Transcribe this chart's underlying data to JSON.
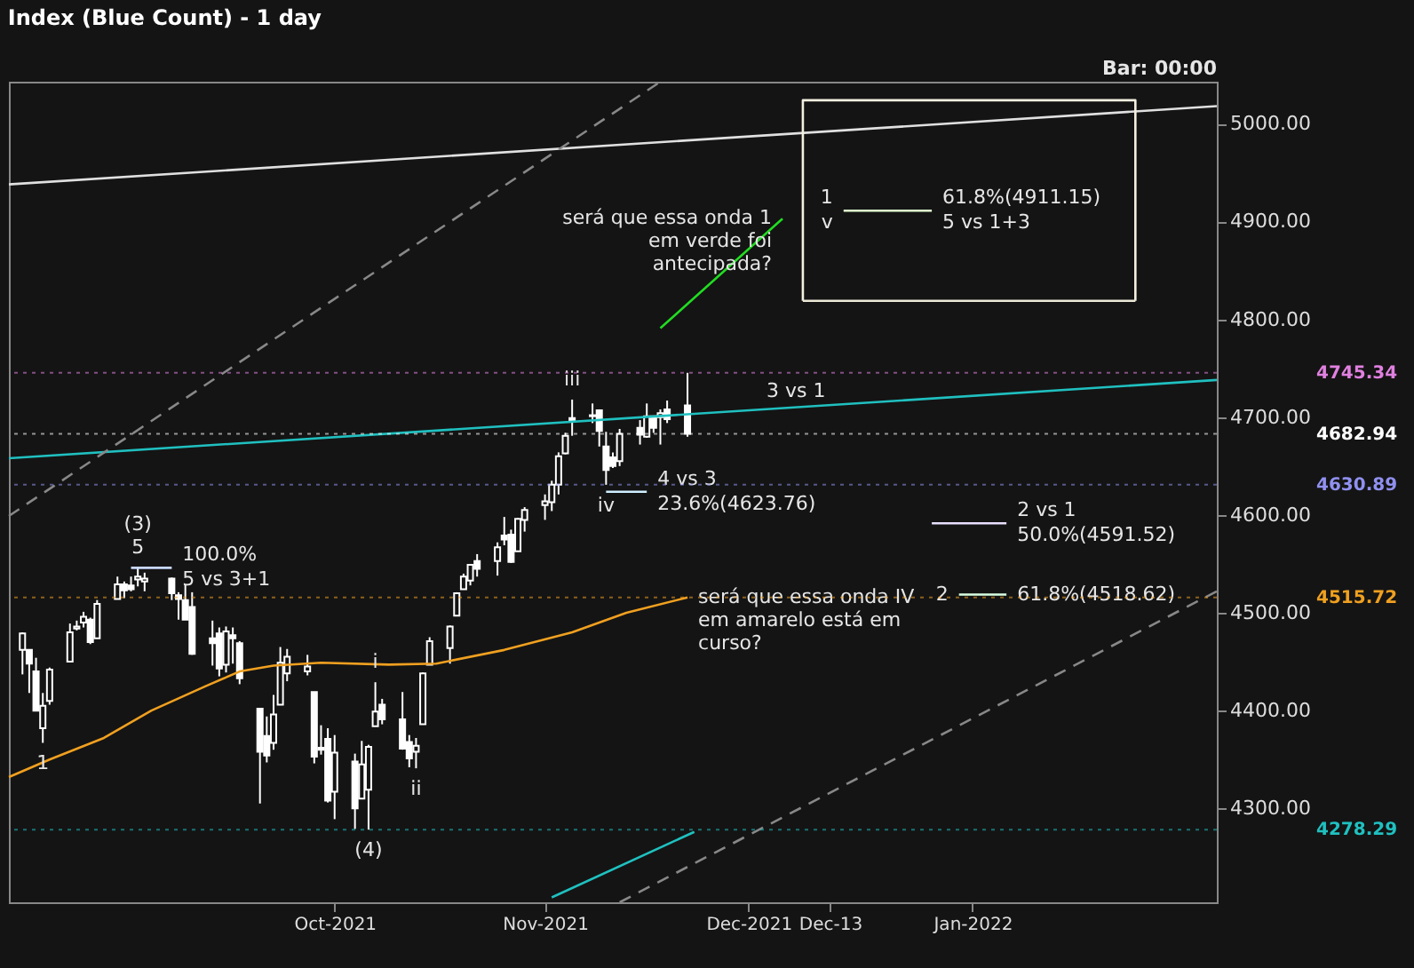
{
  "chart_data": {
    "type": "candlestick",
    "title": "Index (Blue Count) - 1 day",
    "x": [
      "2021-08-16",
      "2021-08-17",
      "2021-08-18",
      "2021-08-19",
      "2021-08-20",
      "2021-08-23",
      "2021-08-24",
      "2021-08-25",
      "2021-08-26",
      "2021-08-27",
      "2021-08-30",
      "2021-08-31",
      "2021-09-01",
      "2021-09-02",
      "2021-09-03",
      "2021-09-07",
      "2021-09-08",
      "2021-09-09",
      "2021-09-10",
      "2021-09-13",
      "2021-09-14",
      "2021-09-15",
      "2021-09-16",
      "2021-09-17",
      "2021-09-20",
      "2021-09-21",
      "2021-09-22",
      "2021-09-23",
      "2021-09-24",
      "2021-09-27",
      "2021-09-28",
      "2021-09-29",
      "2021-09-30",
      "2021-10-01",
      "2021-10-04",
      "2021-10-05",
      "2021-10-06",
      "2021-10-07",
      "2021-10-08",
      "2021-10-11",
      "2021-10-12",
      "2021-10-13",
      "2021-10-14",
      "2021-10-15",
      "2021-10-18",
      "2021-10-19",
      "2021-10-20",
      "2021-10-21",
      "2021-10-22",
      "2021-10-25",
      "2021-10-26",
      "2021-10-27",
      "2021-10-28",
      "2021-10-29",
      "2021-11-01",
      "2021-11-02",
      "2021-11-03",
      "2021-11-04",
      "2021-11-05",
      "2021-11-08",
      "2021-11-09",
      "2021-11-10",
      "2021-11-11",
      "2021-11-12",
      "2021-11-15",
      "2021-11-16",
      "2021-11-17",
      "2021-11-18",
      "2021-11-19",
      "2021-11-22"
    ],
    "ohlc": [
      [
        4462,
        4480,
        4437,
        4479
      ],
      [
        4462,
        4462,
        4418,
        4448
      ],
      [
        4440,
        4454,
        4400,
        4400
      ],
      [
        4382,
        4418,
        4367,
        4405
      ],
      [
        4410,
        4444,
        4406,
        4442
      ],
      [
        4450,
        4489,
        4450,
        4480
      ],
      [
        4484,
        4492,
        4482,
        4486
      ],
      [
        4490,
        4501,
        4485,
        4496
      ],
      [
        4493,
        4495,
        4468,
        4470
      ],
      [
        4474,
        4513,
        4474,
        4509
      ],
      [
        4514,
        4537,
        4514,
        4529
      ],
      [
        4529,
        4532,
        4515,
        4523
      ],
      [
        4528,
        4537,
        4522,
        4524
      ],
      [
        4534,
        4546,
        4527,
        4537
      ],
      [
        4532,
        4541,
        4522,
        4535
      ],
      [
        4535,
        4536,
        4513,
        4520
      ],
      [
        4518,
        4521,
        4493,
        4514
      ],
      [
        4513,
        4529,
        4493,
        4493
      ],
      [
        4506,
        4521,
        4457,
        4458
      ],
      [
        4474,
        4492,
        4446,
        4469
      ],
      [
        4479,
        4485,
        4435,
        4443
      ],
      [
        4447,
        4486,
        4439,
        4481
      ],
      [
        4477,
        4485,
        4448,
        4474
      ],
      [
        4469,
        4471,
        4427,
        4433
      ],
      [
        4402,
        4402,
        4305,
        4358
      ],
      [
        4374,
        4394,
        4347,
        4354
      ],
      [
        4367,
        4416,
        4360,
        4396
      ],
      [
        4406,
        4465,
        4406,
        4449
      ],
      [
        4438,
        4463,
        4430,
        4455
      ],
      [
        4440,
        4457,
        4436,
        4445
      ],
      [
        4419,
        4419,
        4346,
        4353
      ],
      [
        4362,
        4385,
        4355,
        4360
      ],
      [
        4371,
        4382,
        4306,
        4308
      ],
      [
        4317,
        4375,
        4289,
        4357
      ],
      [
        4348,
        4356,
        4279,
        4300
      ],
      [
        4310,
        4369,
        4310,
        4345
      ],
      [
        4319,
        4365,
        4278.29,
        4363
      ],
      [
        4384,
        4429,
        4384,
        4399
      ],
      [
        4406,
        4412,
        4386,
        4391
      ],
      [
        4391,
        4419,
        4360,
        4361
      ],
      [
        4368,
        4375,
        4342,
        4351
      ],
      [
        4358,
        4372,
        4341,
        4364
      ],
      [
        4386,
        4439,
        4386,
        4438
      ],
      [
        4447,
        4475,
        4447,
        4471
      ],
      [
        4464,
        4487,
        4448,
        4486
      ],
      [
        4497,
        4521,
        4497,
        4520
      ],
      [
        4524,
        4540,
        4524,
        4537
      ],
      [
        4533,
        4549,
        4528,
        4549
      ],
      [
        4553,
        4560,
        4537,
        4545
      ],
      [
        4553,
        4572,
        4538,
        4567
      ],
      [
        4579,
        4598,
        4569,
        4575
      ],
      [
        4580,
        4585,
        4551,
        4552
      ],
      [
        4563,
        4597,
        4563,
        4596
      ],
      [
        4595,
        4608,
        4583,
        4605
      ],
      [
        4610,
        4621,
        4595,
        4614
      ],
      [
        4613,
        4635,
        4604,
        4631
      ],
      [
        4631,
        4664,
        4621,
        4660
      ],
      [
        4663,
        4684,
        4662,
        4681
      ],
      [
        4699,
        4718,
        4681,
        4697
      ],
      [
        4701,
        4714,
        4694,
        4702
      ],
      [
        4707,
        4708,
        4670,
        4686
      ],
      [
        4670,
        4685,
        4630.89,
        4646
      ],
      [
        4659,
        4664,
        4648,
        4650
      ],
      [
        4655,
        4688,
        4650,
        4683
      ],
      [
        4689,
        4697,
        4672,
        4682
      ],
      [
        4680,
        4714,
        4679,
        4701
      ],
      [
        4701,
        4701,
        4684,
        4689
      ],
      [
        4700,
        4708,
        4672,
        4704
      ],
      [
        4708,
        4717,
        4694,
        4698
      ],
      [
        4712,
        4745.34,
        4680,
        4682.94
      ]
    ],
    "color": "#ffffff",
    "series": [
      {
        "type": "line",
        "color": "#f0a020",
        "x": [
          "2021-08-14",
          "2021-08-20",
          "2021-08-28",
          "2021-09-04",
          "2021-09-12",
          "2021-09-17",
          "2021-09-22",
          "2021-09-29",
          "2021-10-09",
          "2021-10-16",
          "2021-10-26",
          "2021-11-05",
          "2021-11-13",
          "2021-11-22"
        ],
        "values": [
          4332,
          4350,
          4372,
          4400,
          4425,
          4440,
          4446,
          4449,
          4447,
          4448,
          4462,
          4480,
          4500,
          4515.72
        ]
      },
      {
        "type": "line",
        "color": "#20c0c0",
        "x": [
          "2021-08-14",
          "2022-02-08"
        ],
        "values": [
          4658,
          4738
        ]
      },
      {
        "type": "line",
        "color": "#20c0c0",
        "x": [
          "2021-11-02",
          "2021-11-23"
        ],
        "values": [
          4209,
          4276
        ]
      },
      {
        "type": "line",
        "color": "#e0e0e0",
        "x": [
          "2021-08-14",
          "2022-02-08"
        ],
        "values": [
          4938,
          5018
        ]
      },
      {
        "type": "line",
        "color": "#888888",
        "line_style": "dashed",
        "x": [
          "2021-08-14",
          "2021-11-18"
        ],
        "values": [
          4599,
          5043
        ]
      },
      {
        "type": "line",
        "color": "#888888",
        "line_style": "dashed",
        "x": [
          "2021-11-12",
          "2022-02-08"
        ],
        "values": [
          4204,
          4522
        ]
      },
      {
        "type": "line",
        "color": "#22dd22",
        "x": [
          "2021-12-06",
          "2021-11-18"
        ],
        "values": [
          4903,
          4791
        ]
      },
      {
        "type": "line",
        "color": "#f4f0e0",
        "x": [
          "2021-12-09",
          "2021-12-09",
          "2022-01-27",
          "2022-01-27"
        ],
        "values": [
          4819,
          5024,
          5024,
          4819
        ]
      },
      {
        "type": "line",
        "color": "#ece8d8",
        "x": [
          "2021-12-09",
          "2022-01-27"
        ],
        "values": [
          4819,
          4819
        ]
      },
      {
        "type": "line",
        "color": "#c8d8ff",
        "x": [
          "2021-09-01",
          "2021-09-07"
        ],
        "values": [
          4546,
          4546
        ]
      },
      {
        "type": "line",
        "color": "#d0f0ff",
        "x": [
          "2021-11-10",
          "2021-11-16"
        ],
        "values": [
          4623.76,
          4623.76
        ]
      },
      {
        "type": "line",
        "color": "#e0ffd0",
        "x": [
          "2021-12-15",
          "2021-12-28"
        ],
        "values": [
          4911.15,
          4911.15
        ]
      },
      {
        "type": "line",
        "color": "#e8e0ff",
        "x": [
          "2021-12-28",
          "2022-01-08"
        ],
        "values": [
          4591.52,
          4591.52
        ]
      },
      {
        "type": "line",
        "color": "#d8ffe0",
        "x": [
          "2022-01-01",
          "2022-01-08"
        ],
        "values": [
          4518.62,
          4518.62
        ]
      }
    ],
    "ref_lines": [
      {
        "axis": "y",
        "value": 4745.34,
        "label": "4745.34",
        "color": "#e080e0"
      },
      {
        "axis": "y",
        "value": 4682.94,
        "label": "4682.94",
        "color": "#ffffff"
      },
      {
        "axis": "y",
        "value": 4630.89,
        "label": "4630.89",
        "color": "#9090f0"
      },
      {
        "axis": "y",
        "value": 4515.72,
        "label": "4515.72",
        "color": "#f0a020"
      },
      {
        "axis": "y",
        "value": 4278.29,
        "label": "4278.29",
        "color": "#20c0c0"
      }
    ],
    "annotations": [
      {
        "text": "(3)",
        "x": "2021-09-02",
        "y": 4546
      },
      {
        "text": "5",
        "x": "2021-09-02",
        "y": 4546
      },
      {
        "text": "100.0%",
        "x": "2021-09-07",
        "y": 4546
      },
      {
        "text": "5 vs 3+1",
        "x": "2021-09-07",
        "y": 4546
      },
      {
        "text": "1",
        "x": "2021-08-19",
        "y": 4367
      },
      {
        "text": "(4)",
        "x": "2021-10-06",
        "y": 4278.29
      },
      {
        "text": "i",
        "x": "2021-10-07",
        "y": 4429
      },
      {
        "text": "ii",
        "x": "2021-10-13",
        "y": 4341
      },
      {
        "text": "iii",
        "x": "2021-11-05",
        "y": 4718
      },
      {
        "text": "iv",
        "x": "2021-11-10",
        "y": 4630.89
      },
      {
        "text": "4 vs 3",
        "x": "2021-11-16",
        "y": 4623.76
      },
      {
        "text": "23.6%(4623.76)",
        "x": "2021-11-16",
        "y": 4623.76
      },
      {
        "text": "3 vs 1",
        "x": "2021-12-08",
        "y": 4710
      },
      {
        "text": "será que essa onda 1\nem verde foi\nantecipada?",
        "x": "2021-12-06",
        "y": 4903
      },
      {
        "text": "será que essa onda IV\nem amarelo está em\ncurso?",
        "x": "2021-11-22",
        "y": 4515.72
      },
      {
        "text": "1",
        "x": "2021-12-15",
        "y": 4911.15
      },
      {
        "text": "v",
        "x": "2021-12-15",
        "y": 4911.15
      },
      {
        "text": "61.8%(4911.15)",
        "x": "2021-12-28",
        "y": 4911.15
      },
      {
        "text": "5 vs 1+3",
        "x": "2021-12-28",
        "y": 4911.15
      },
      {
        "text": "2 vs 1",
        "x": "2022-01-08",
        "y": 4591.52
      },
      {
        "text": "50.0%(4591.52)",
        "x": "2022-01-08",
        "y": 4591.52
      },
      {
        "text": "2",
        "x": "2022-01-01",
        "y": 4518.62
      },
      {
        "text": "61.8%(4518.62)",
        "x": "2022-01-08",
        "y": 4518.62
      },
      "Bar: 00:00"
    ],
    "xlim": [
      "2021-08-14",
      "2022-02-08"
    ],
    "xticks": [
      {
        "value": "2021-10-01",
        "label": "Oct-2021"
      },
      {
        "value": "2021-11-01",
        "label": "Nov-2021"
      },
      {
        "value": "2021-12-01",
        "label": "Dec-2021"
      },
      {
        "value": "2021-12-13",
        "label": "Dec-13"
      },
      {
        "value": "2022-01-03",
        "label": "Jan-2022"
      }
    ],
    "ylim": [
      4204,
      5043
    ],
    "yticks": [
      {
        "value": 4300,
        "label": "4300.00"
      },
      {
        "value": 4400,
        "label": "4400.00"
      },
      {
        "value": 4500,
        "label": "4500.00"
      },
      {
        "value": 4600,
        "label": "4600.00"
      },
      {
        "value": 4700,
        "label": "4700.00"
      },
      {
        "value": 4800,
        "label": "4800.00"
      },
      {
        "value": 4900,
        "label": "4900.00"
      },
      {
        "value": 5000,
        "label": "5000.00"
      }
    ],
    "grid": false,
    "marker": "none"
  }
}
